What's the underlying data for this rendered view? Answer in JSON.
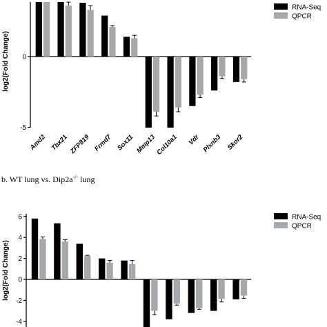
{
  "panel_b": {
    "prefix": "b. WT lung vs. Dip2a",
    "superscript": "-/-",
    "suffix": " lung"
  },
  "chart_data": [
    {
      "type": "bar",
      "ylabel": "log2(Fold Change)",
      "ylim": [
        -10,
        7.6
      ],
      "yticks": [
        -10,
        -5,
        0,
        5
      ],
      "categories": [
        "Amd2",
        "Tbx21",
        "ZFP819",
        "Frmd7",
        "Sox11",
        "Mmp13",
        "Col10a1",
        "Vdr",
        "Plxnb3",
        "Skor2"
      ],
      "series": [
        {
          "name": "RNA-Seq",
          "color": "#000000",
          "values": [
            7.6,
            4.9,
            3.8,
            2.9,
            1.4,
            -6.2,
            -5.2,
            -3.5,
            -2.4,
            -1.8
          ]
        },
        {
          "name": "QPCR",
          "color": "#a6a9ac",
          "values": [
            5.4,
            3.6,
            3.3,
            2.1,
            1.3,
            -3.9,
            -3.6,
            -2.7,
            -1.4,
            -1.6
          ],
          "errors": [
            0.25,
            0.25,
            0.3,
            0.1,
            0.2,
            0.3,
            0.3,
            0.2,
            0.15,
            0.2
          ]
        }
      ],
      "legend": "top-right"
    },
    {
      "type": "bar",
      "ylabel": "log2(Fold Change)",
      "ylim": [
        -4.6,
        6.8
      ],
      "yticks": [
        -4,
        -2,
        0,
        2,
        4,
        6
      ],
      "categories": [
        "",
        "",
        "",
        "",
        "",
        "",
        "",
        "",
        "",
        ""
      ],
      "series": [
        {
          "name": "RNA-Seq",
          "color": "#000000",
          "values": [
            5.8,
            5.35,
            3.4,
            2.0,
            1.8,
            -4.6,
            -3.8,
            -3.2,
            -3.0,
            -1.9
          ]
        },
        {
          "name": "QPCR",
          "color": "#a6a9ac",
          "values": [
            3.85,
            3.6,
            2.25,
            1.6,
            1.45,
            -3.0,
            -2.3,
            -2.75,
            -1.85,
            -1.55
          ],
          "errors": [
            0.2,
            0.18,
            0.05,
            0.2,
            0.35,
            0.35,
            0.15,
            0.1,
            0.3,
            0.25
          ]
        }
      ],
      "legend": "top-right"
    }
  ]
}
